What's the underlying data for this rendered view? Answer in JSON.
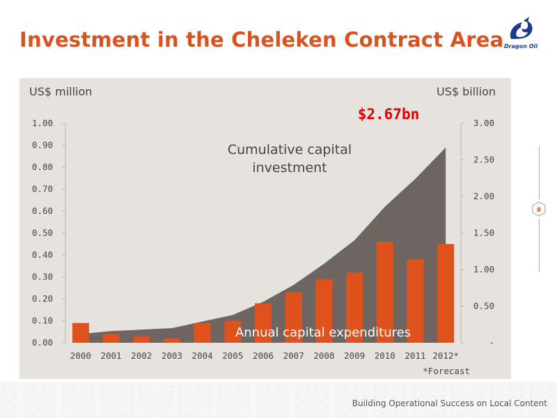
{
  "page": {
    "title": "Investment in the Cheleken Contract Area",
    "logo_text": "Dragon Oil",
    "page_number": "8",
    "footer": "Building Operational Success on Local Content"
  },
  "colors": {
    "title": "#d9531e",
    "bar": "#e0521b",
    "area": "#6e6560",
    "panel": "#e6e2de",
    "highlight": "#e00000"
  },
  "chart_data": {
    "type": "bar",
    "categories": [
      "2000",
      "2001",
      "2002",
      "2003",
      "2004",
      "2005",
      "2006",
      "2007",
      "2008",
      "2009",
      "2010",
      "2011",
      "2012*"
    ],
    "series": [
      {
        "name": "Annual capital expenditures",
        "type": "bar",
        "axis": "left",
        "values": [
          0.09,
          0.04,
          0.03,
          0.02,
          0.09,
          0.1,
          0.18,
          0.23,
          0.29,
          0.32,
          0.46,
          0.38,
          0.45
        ]
      },
      {
        "name": "Cumulative capital investment",
        "type": "area",
        "axis": "right",
        "values": [
          0.12,
          0.16,
          0.18,
          0.2,
          0.29,
          0.38,
          0.56,
          0.79,
          1.08,
          1.4,
          1.86,
          2.24,
          2.67
        ]
      }
    ],
    "left_axis": {
      "label": "US$ million",
      "ylim": [
        0,
        1.0
      ],
      "ticks": [
        "0.00",
        "0.10",
        "0.20",
        "0.30",
        "0.40",
        "0.50",
        "0.60",
        "0.70",
        "0.80",
        "0.90",
        "1.00"
      ]
    },
    "right_axis": {
      "label": "US$ billion",
      "ylim": [
        0,
        3.0
      ],
      "ticks": [
        "-",
        "0.50",
        "1.00",
        "1.50",
        "2.00",
        "2.50",
        "3.00"
      ]
    },
    "annotations": {
      "total": "$2.67bn",
      "cumulative_label_line1": "Cumulative capital",
      "cumulative_label_line2": "investment",
      "annual_label": "Annual capital expenditures",
      "forecast_note": "*Forecast"
    }
  }
}
